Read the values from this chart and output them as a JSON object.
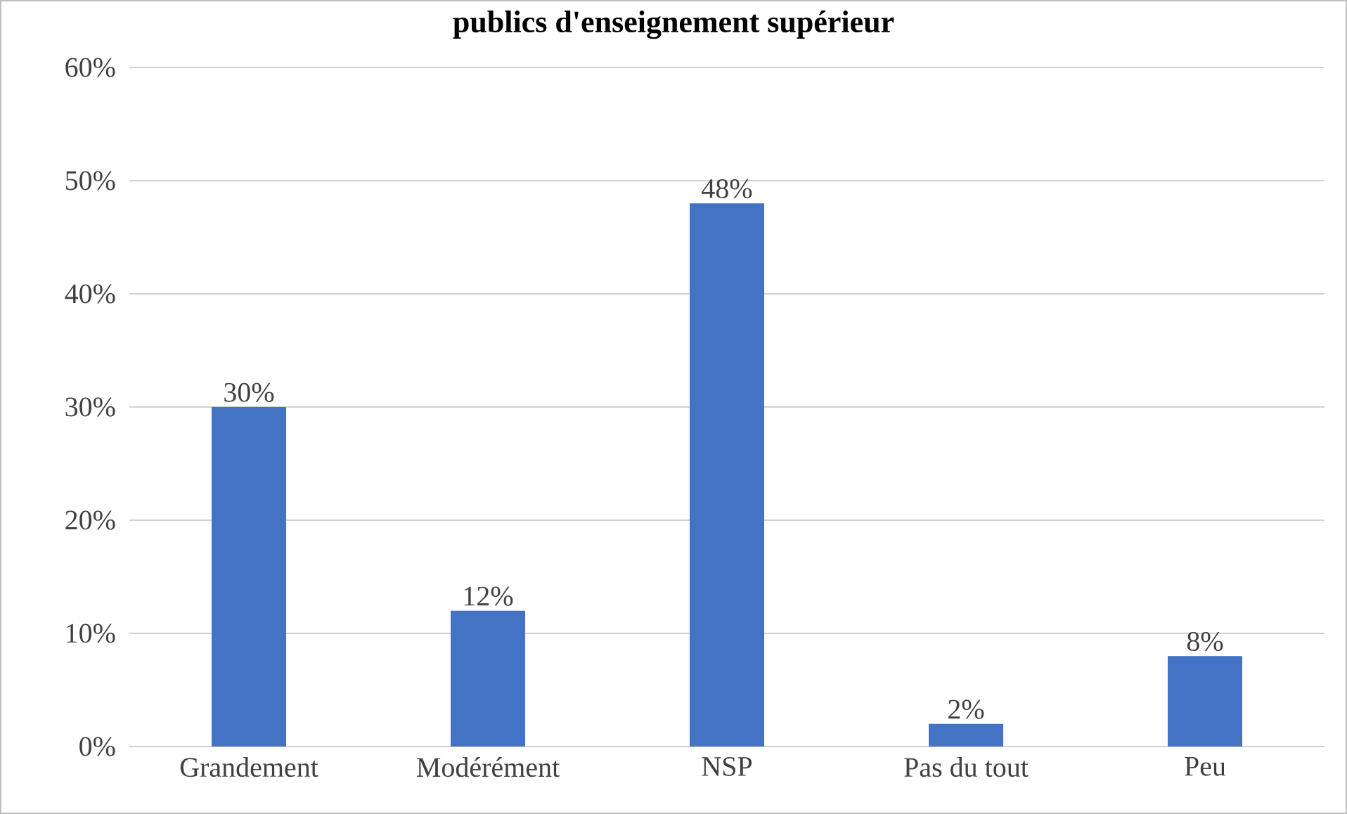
{
  "chart_data": {
    "type": "bar",
    "title": "publics d'enseignement supérieur",
    "categories": [
      "Grandement",
      "Modérément",
      "NSP",
      "Pas du tout",
      "Peu"
    ],
    "values": [
      30,
      12,
      48,
      2,
      8
    ],
    "color": "#4472c4",
    "ylim": [
      0,
      60
    ],
    "yticks": [
      {
        "value": 0,
        "label": "0%"
      },
      {
        "value": 10,
        "label": "10%"
      },
      {
        "value": 20,
        "label": "20%"
      },
      {
        "value": 30,
        "label": "30%"
      },
      {
        "value": 40,
        "label": "40%"
      },
      {
        "value": 50,
        "label": "50%"
      },
      {
        "value": 60,
        "label": "60%"
      }
    ],
    "value_labels": [
      "30%",
      "12%",
      "48%",
      "2%",
      "8%"
    ],
    "grid": "y"
  }
}
